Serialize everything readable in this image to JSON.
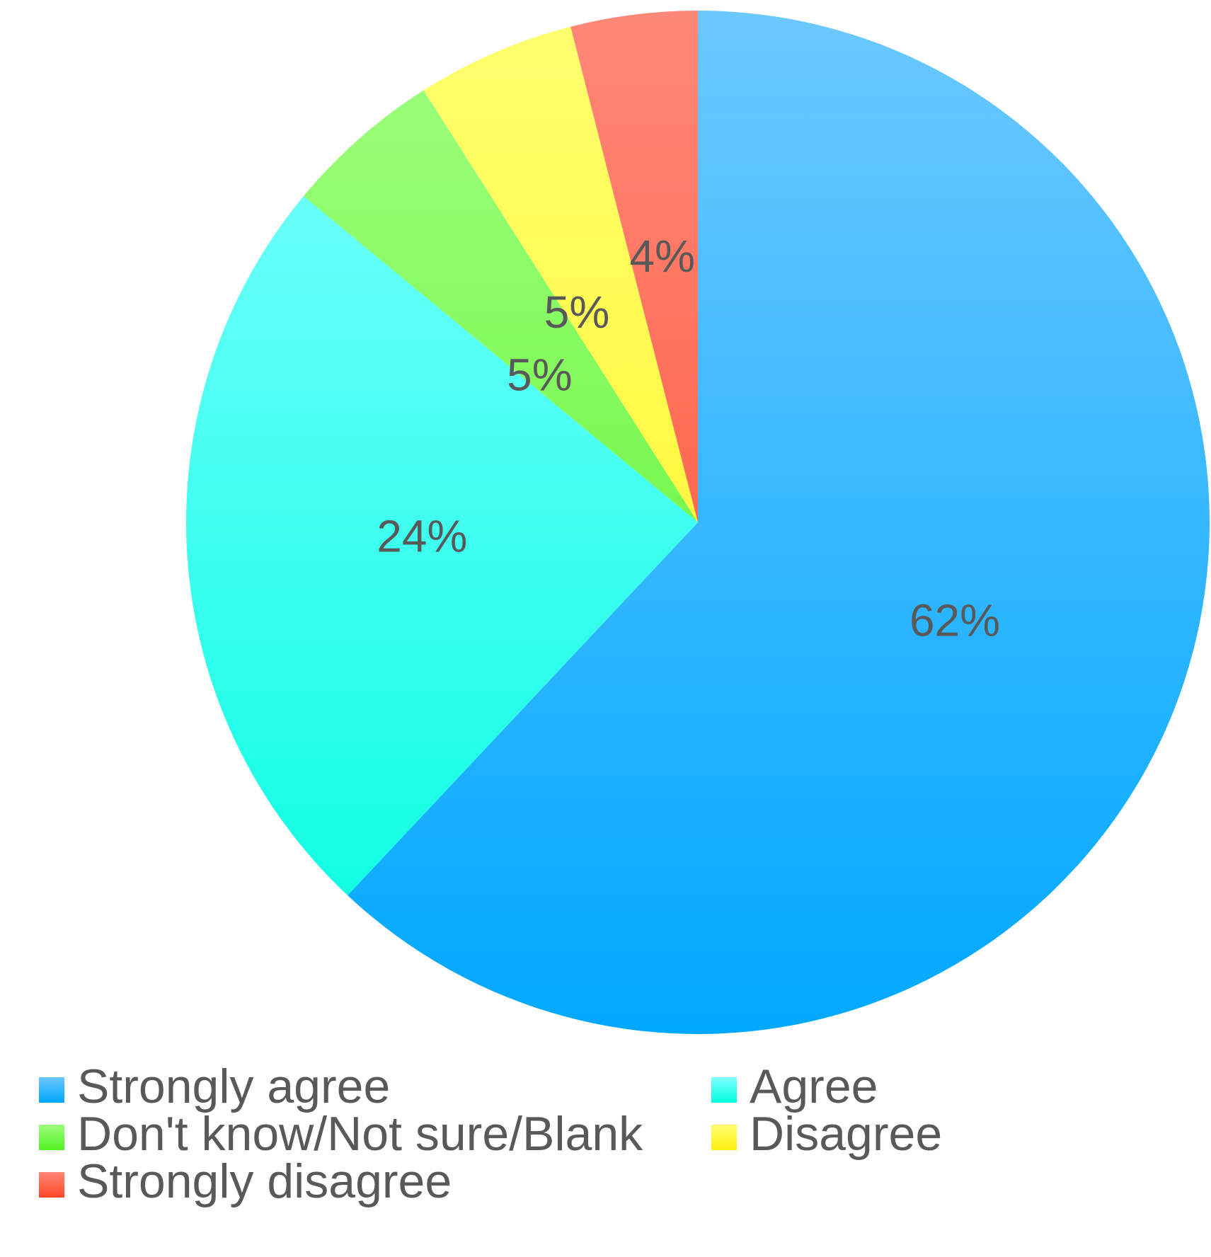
{
  "chart_data": {
    "type": "pie",
    "title": "",
    "categories": [
      "Strongly agree",
      "Agree",
      "Don't know/Not sure/Blank",
      "Disagree",
      "Strongly disagree"
    ],
    "values": [
      62,
      24,
      5,
      5,
      4
    ],
    "labels": [
      "62%",
      "24%",
      "5%",
      "5%",
      "4%"
    ],
    "colors": [
      [
        "#6cc8ff",
        "#00a8ff"
      ],
      [
        "#80ffff",
        "#00ffe0"
      ],
      [
        "#a0ff80",
        "#50f020"
      ],
      [
        "#ffff70",
        "#fff010"
      ],
      [
        "#ff8878",
        "#ff4828"
      ]
    ],
    "start_angle_deg": 0,
    "direction": "clockwise",
    "legend": {
      "position": "bottom",
      "columns": 2
    }
  }
}
